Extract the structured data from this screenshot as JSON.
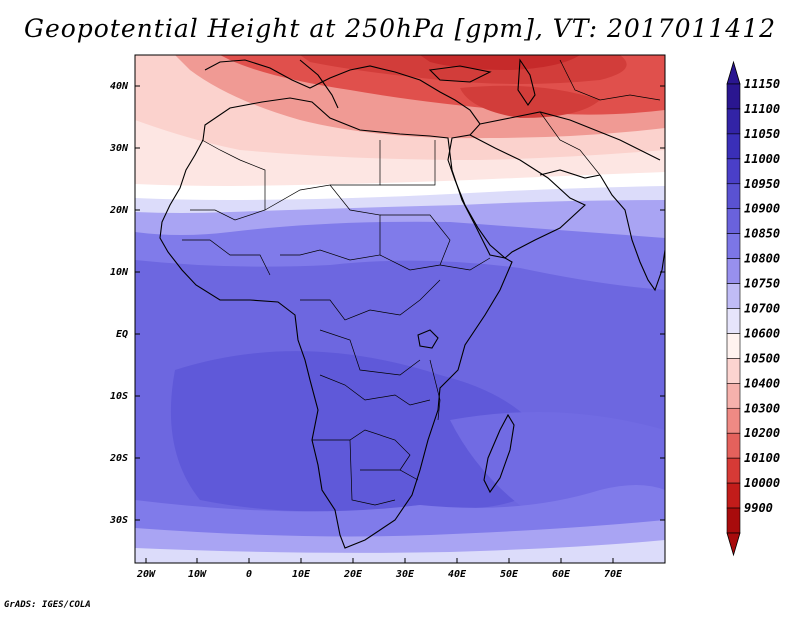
{
  "title": "Geopotential Height at 250hPa [gpm], VT: 2017011412",
  "credit": "GrADS: IGES/COLA",
  "lat_ticks": [
    "40N",
    "30N",
    "20N",
    "10N",
    "EQ",
    "10S",
    "20S",
    "30S"
  ],
  "lon_ticks": [
    "20W",
    "10W",
    "0",
    "10E",
    "20E",
    "30E",
    "40E",
    "50E",
    "60E",
    "70E"
  ],
  "colorbar": {
    "labels": [
      "11150",
      "11100",
      "11050",
      "11000",
      "10950",
      "10900",
      "10850",
      "10800",
      "10750",
      "10700",
      "10600",
      "10500",
      "10400",
      "10300",
      "10200",
      "10100",
      "10000",
      "9900"
    ],
    "colors": [
      "#2a1690",
      "#3223a6",
      "#3a2fb8",
      "#4a3fc8",
      "#5a52d2",
      "#6a62dc",
      "#7c76e6",
      "#9890ee",
      "#c0bcf6",
      "#e6e4fb",
      "#fff3f0",
      "#fcd4d0",
      "#f6b1ac",
      "#ef8a84",
      "#e4615c",
      "#d63a36",
      "#c21c1a",
      "#a80b0c"
    ]
  },
  "map": {
    "extent": "20W-80E, 37S-45N",
    "colors": {
      "deep_red": "#c62a2a",
      "red": "#e0504c",
      "light_red": "#f09a94",
      "pink": "#fbd2cd",
      "white": "#ffffff",
      "pale_blue": "#dcdcfa",
      "light_blue": "#a9a4f3",
      "blue": "#807bea",
      "mid_blue": "#716be3",
      "deep_blue": "#655fdc"
    }
  }
}
